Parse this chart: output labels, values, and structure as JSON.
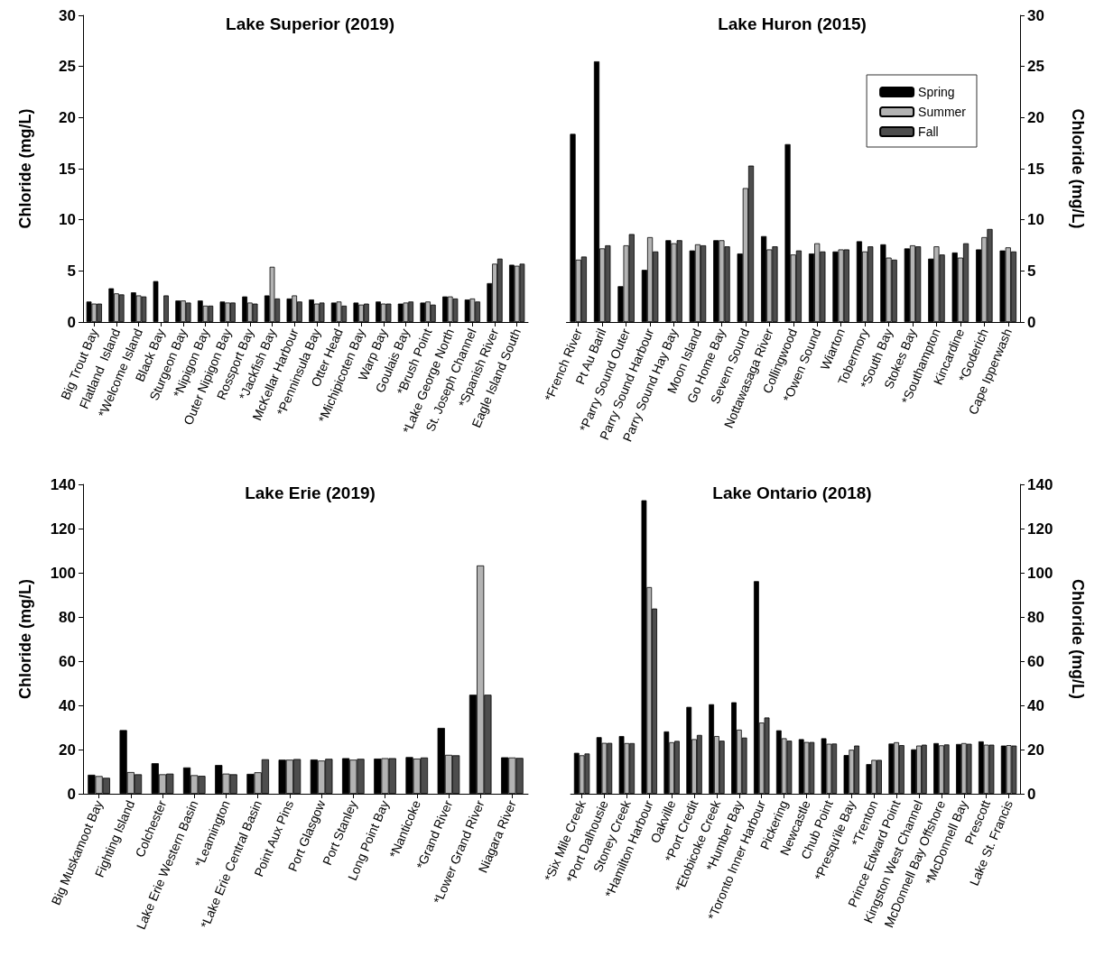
{
  "chart_data": [
    {
      "type": "bar",
      "title": "Lake Superior (2019)",
      "ylabel": "Chloride (mg/L)",
      "categories": [
        "Big Trout Bay",
        "Flatland  Island",
        "*Welcome Island",
        "Black Bay",
        "Sturgeon Bay",
        "*Nipigon Bay",
        "Outer Nipigon Bay",
        "Rossport Bay",
        "*Jackfish Bay",
        "McKellar Harbour",
        "*Penninsula Bay",
        "Otter Head",
        "*Michipicoten Bay",
        "Warp Bay",
        "Goulais Bay",
        "*Brush Point",
        "*Lake George North",
        "St. Joseph Channel",
        "*Spanish River",
        "Eagle Island South"
      ],
      "ylim": [
        0,
        30
      ],
      "yticks": [
        0,
        5,
        10,
        15,
        20,
        25,
        30
      ],
      "grid": false,
      "legend": false,
      "series": [
        {
          "color": "#000000",
          "values": [
            2.0,
            3.3,
            2.9,
            4.0,
            2.1,
            2.1,
            2.0,
            2.5,
            2.6,
            2.3,
            2.2,
            1.9,
            1.9,
            2.0,
            1.8,
            1.9,
            2.5,
            2.2,
            3.8,
            5.6
          ]
        },
        {
          "color": "#b3b3b3",
          "values": [
            1.8,
            2.8,
            2.6,
            null,
            2.1,
            1.6,
            1.9,
            1.9,
            5.4,
            2.6,
            1.8,
            2.0,
            1.7,
            1.8,
            1.9,
            2.0,
            2.5,
            2.3,
            5.7,
            5.5
          ]
        },
        {
          "color": "#4d4d4d",
          "values": [
            1.8,
            2.7,
            2.5,
            2.6,
            1.9,
            1.6,
            1.9,
            1.8,
            2.3,
            2.0,
            1.9,
            1.6,
            1.8,
            1.8,
            2.0,
            1.7,
            2.3,
            2.0,
            6.2,
            5.7
          ]
        }
      ]
    },
    {
      "type": "bar",
      "title": "Lake Huron (2015)",
      "y2label": "Chloride (mg/L)",
      "categories": [
        "*French River",
        "Pt Au Baril",
        "*Parry Sound Outer",
        "Parry Sound Harbour",
        "Parry Sound Hay Bay",
        "Moon Island",
        "Go Home Bay",
        "Severn Sound",
        "Nottawasaga River",
        "Collingwood",
        "*Owen Sound",
        "Wiarton",
        "Tobermory",
        "*South Bay",
        "Stokes Bay",
        "*Southampton",
        "Kincardine",
        "*Goderich",
        "Cape Ipperwash"
      ],
      "y2lim": [
        0,
        30
      ],
      "y2ticks": [
        0,
        5,
        10,
        15,
        20,
        25,
        30
      ],
      "grid": false,
      "legend": "top right",
      "series": [
        {
          "name": "Spring",
          "axis": "y2",
          "color": "#000000",
          "values": [
            18.4,
            25.5,
            3.5,
            5.1,
            8.0,
            7.0,
            8.0,
            6.7,
            8.4,
            17.4,
            6.7,
            6.9,
            7.9,
            7.6,
            7.2,
            6.2,
            6.8,
            7.1,
            7.0
          ]
        },
        {
          "name": "Summer",
          "axis": "y2",
          "color": "#b3b3b3",
          "values": [
            6.1,
            7.2,
            7.5,
            8.3,
            7.7,
            7.6,
            8.0,
            13.1,
            7.1,
            6.6,
            7.7,
            7.1,
            6.9,
            6.3,
            7.5,
            7.4,
            6.3,
            8.3,
            7.3
          ]
        },
        {
          "name": "Fall",
          "axis": "y2",
          "color": "#4d4d4d",
          "values": [
            6.4,
            7.5,
            8.6,
            6.9,
            8.0,
            7.5,
            7.4,
            15.3,
            7.4,
            7.0,
            6.9,
            7.1,
            7.4,
            6.1,
            7.4,
            6.6,
            7.7,
            9.1,
            6.9
          ]
        }
      ]
    },
    {
      "type": "bar",
      "title": "Lake Erie (2019)",
      "ylabel": "Chloride (mg/L)",
      "categories": [
        "Big Muskamoot Bay",
        "Fighting Island",
        "Colchester",
        "Lake Erie Western Basin",
        "*Leamington",
        "*Lake Erie Central Basin",
        "Point Aux Pins",
        "Port Glasgow",
        "Port Stanley",
        "Long Point Bay",
        "*Nanticoke",
        "*Grand River",
        "*Lower Grand River",
        "Niagara River"
      ],
      "ylim": [
        0,
        140
      ],
      "yticks": [
        0,
        20,
        40,
        60,
        80,
        100,
        120,
        140
      ],
      "grid": false,
      "legend": false,
      "series": [
        {
          "color": "#000000",
          "values": [
            8.6,
            28.8,
            13.8,
            11.9,
            13.0,
            9.0,
            15.4,
            15.5,
            16.1,
            15.9,
            16.6,
            29.8,
            44.8,
            16.5
          ]
        },
        {
          "color": "#b3b3b3",
          "values": [
            8.0,
            9.8,
            8.8,
            8.4,
            9.1,
            9.7,
            15.4,
            15.0,
            15.4,
            16.1,
            15.9,
            17.6,
            103.3,
            16.4
          ]
        },
        {
          "color": "#4d4d4d",
          "values": [
            7.2,
            8.8,
            9.1,
            8.1,
            8.8,
            15.6,
            15.7,
            15.8,
            15.8,
            16.1,
            16.4,
            17.4,
            44.8,
            16.2
          ]
        }
      ]
    },
    {
      "type": "bar",
      "title": "Lake Ontario (2018)",
      "y2label": "Chloride (mg/L)",
      "categories": [
        "*Six Mile Creek",
        "*Port Dalhousie",
        "Stoney Creek",
        "*Hamilton Harbour",
        "Oakville",
        "*Port Credit",
        "*Etobicoke Creek",
        "*Humber Bay",
        "*Toronto Inner Harbour",
        "Pickering",
        "Newcastle",
        "Chub Point",
        "*Presqu'ile Bay",
        "*Trenton",
        "Prince Edward Point",
        "Kingston West Channel",
        "McDonnell Bay Offshore",
        "*McDonnell Bay",
        "Prescott",
        "Lake St. Francis"
      ],
      "y2lim": [
        0,
        140
      ],
      "y2ticks": [
        0,
        20,
        40,
        60,
        80,
        100,
        120,
        140
      ],
      "grid": false,
      "legend": false,
      "series": [
        {
          "axis": "y2",
          "color": "#000000",
          "values": [
            18.5,
            25.6,
            26.1,
            132.8,
            28.2,
            39.3,
            40.5,
            41.4,
            96.2,
            28.7,
            24.7,
            25.1,
            17.5,
            13.4,
            22.7,
            20.1,
            22.9,
            22.5,
            23.7,
            21.8
          ]
        },
        {
          "axis": "y2",
          "color": "#b3b3b3",
          "values": [
            17.4,
            23.0,
            22.9,
            93.5,
            23.3,
            24.7,
            26.1,
            29.0,
            32.2,
            25.1,
            23.4,
            22.6,
            19.9,
            15.3,
            23.3,
            21.8,
            21.9,
            22.9,
            22.2,
            22.0
          ]
        },
        {
          "axis": "y2",
          "color": "#4d4d4d",
          "values": [
            18.2,
            23.0,
            22.9,
            83.8,
            23.9,
            26.6,
            24.0,
            25.4,
            34.5,
            24.0,
            23.4,
            22.7,
            21.8,
            15.3,
            22.0,
            22.2,
            22.3,
            22.6,
            22.2,
            21.8
          ]
        }
      ]
    }
  ]
}
